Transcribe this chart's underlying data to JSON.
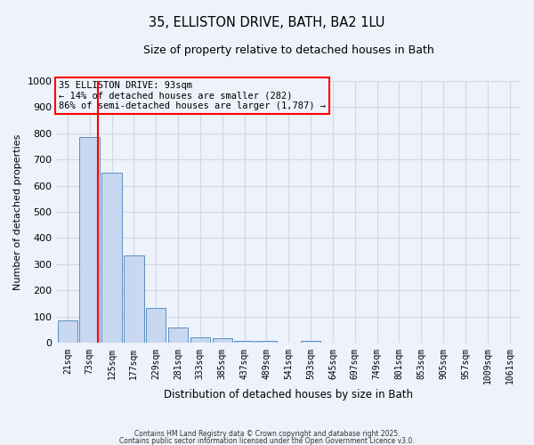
{
  "title1": "35, ELLISTON DRIVE, BATH, BA2 1LU",
  "title2": "Size of property relative to detached houses in Bath",
  "xlabel": "Distribution of detached houses by size in Bath",
  "ylabel": "Number of detached properties",
  "bar_color": "#c8d8f0",
  "bar_edge_color": "#5a8fc0",
  "categories": [
    "21sqm",
    "73sqm",
    "125sqm",
    "177sqm",
    "229sqm",
    "281sqm",
    "333sqm",
    "385sqm",
    "437sqm",
    "489sqm",
    "541sqm",
    "593sqm",
    "645sqm",
    "697sqm",
    "749sqm",
    "801sqm",
    "853sqm",
    "905sqm",
    "957sqm",
    "1009sqm",
    "1061sqm"
  ],
  "values": [
    85,
    785,
    650,
    335,
    135,
    60,
    22,
    18,
    10,
    8,
    0,
    10,
    0,
    0,
    0,
    0,
    0,
    0,
    0,
    0,
    0
  ],
  "ylim": [
    0,
    1000
  ],
  "yticks": [
    0,
    100,
    200,
    300,
    400,
    500,
    600,
    700,
    800,
    900,
    1000
  ],
  "red_line_x": 1.38,
  "annotation_title": "35 ELLISTON DRIVE: 93sqm",
  "annotation_line1": "← 14% of detached houses are smaller (282)",
  "annotation_line2": "86% of semi-detached houses are larger (1,787) →",
  "annotation_box_color": "#ff0000",
  "grid_color": "#d0d8e8",
  "background_color": "#eef2fa",
  "footer1": "Contains HM Land Registry data © Crown copyright and database right 2025.",
  "footer2": "Contains public sector information licensed under the Open Government Licence v3.0."
}
